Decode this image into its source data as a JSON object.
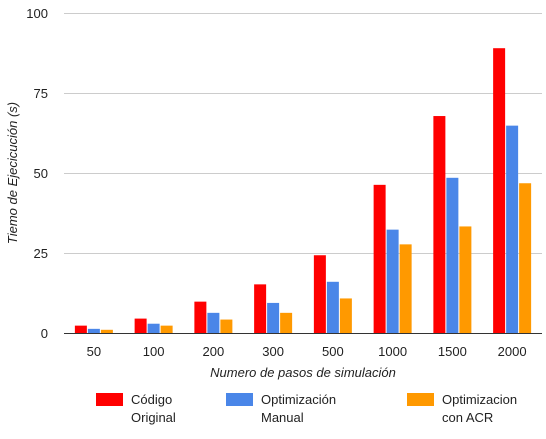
{
  "chart_data": {
    "type": "bar",
    "xlabel": "Numero de pasos de simulación",
    "ylabel": "Tiemo de Ejecicución (s)",
    "categories": [
      "50",
      "100",
      "200",
      "300",
      "500",
      "1000",
      "1500",
      "2000"
    ],
    "ylim": [
      0,
      100
    ],
    "yticks": [
      0,
      25,
      50,
      75,
      100
    ],
    "grid": true,
    "legend_position": "bottom",
    "series": [
      {
        "name": "Código\nOriginal",
        "color": "#ff0000",
        "values": [
          2.3,
          4.5,
          9.8,
          15.2,
          24.3,
          46.3,
          67.8,
          89.0
        ]
      },
      {
        "name": "Optimización\nManual",
        "color": "#4a86e8",
        "values": [
          1.3,
          2.9,
          6.3,
          9.4,
          16.0,
          32.3,
          48.5,
          64.8
        ]
      },
      {
        "name": "Optimizacion\ncon ACR",
        "color": "#ff9900",
        "values": [
          1.0,
          2.3,
          4.2,
          6.3,
          10.8,
          27.7,
          33.3,
          46.8
        ]
      }
    ]
  }
}
